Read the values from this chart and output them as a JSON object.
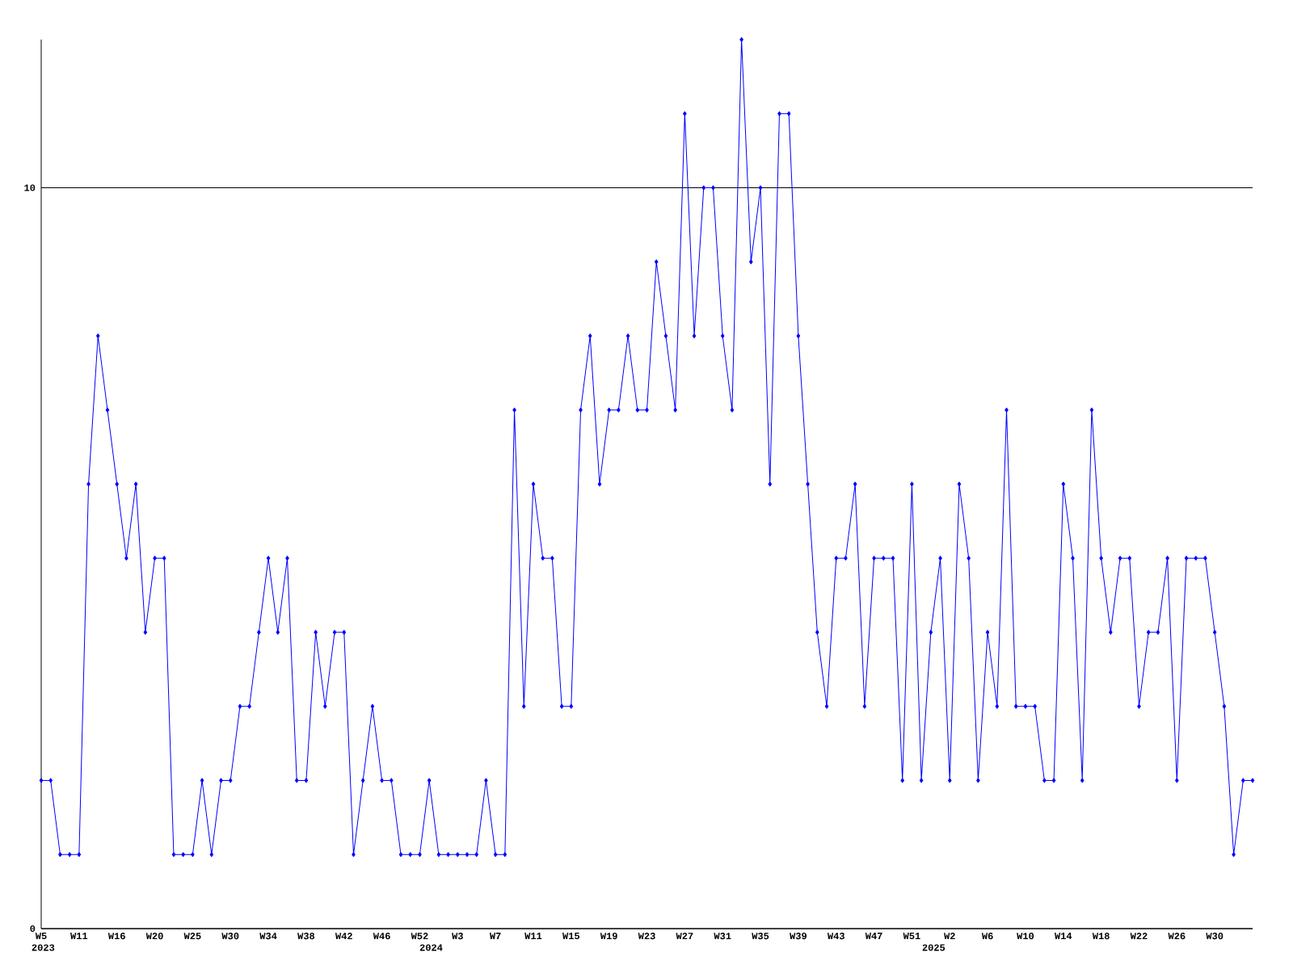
{
  "chart_data": {
    "type": "line",
    "categories": [
      "W5",
      null,
      null,
      null,
      "W11",
      null,
      null,
      null,
      "W16",
      null,
      null,
      null,
      "W20",
      null,
      null,
      null,
      "W25",
      null,
      null,
      null,
      "W30",
      null,
      null,
      null,
      "W34",
      null,
      null,
      null,
      "W38",
      null,
      null,
      null,
      "W42",
      null,
      null,
      null,
      "W46",
      null,
      null,
      null,
      "W52",
      null,
      null,
      null,
      "W3",
      null,
      null,
      null,
      "W7",
      null,
      null,
      null,
      "W11",
      null,
      null,
      null,
      "W15",
      null,
      null,
      null,
      "W19",
      null,
      null,
      null,
      "W23",
      null,
      null,
      null,
      "W27",
      null,
      null,
      null,
      "W31",
      null,
      null,
      null,
      "W35",
      null,
      null,
      null,
      "W39",
      null,
      null,
      null,
      "W43",
      null,
      null,
      null,
      "W47",
      null,
      null,
      null,
      "W51",
      null,
      null,
      null,
      "W2",
      null,
      null,
      null,
      "W6",
      null,
      null,
      null,
      "W10",
      null,
      null,
      null,
      "W14",
      null,
      null,
      null,
      "W18",
      null,
      null,
      null,
      "W22",
      null,
      null,
      null,
      "W26",
      null,
      null,
      null,
      "W30",
      null,
      null,
      null,
      null
    ],
    "values": [
      2,
      2,
      1,
      1,
      1,
      6,
      8,
      7,
      6,
      5,
      6,
      4,
      5,
      5,
      1,
      1,
      1,
      2,
      1,
      2,
      2,
      3,
      3,
      4,
      5,
      4,
      5,
      2,
      2,
      4,
      3,
      4,
      4,
      1,
      2,
      3,
      2,
      2,
      1,
      1,
      1,
      2,
      1,
      1,
      1,
      1,
      1,
      2,
      1,
      1,
      7,
      3,
      6,
      5,
      5,
      3,
      3,
      7,
      8,
      6,
      7,
      7,
      8,
      7,
      7,
      9,
      8,
      7,
      11,
      8,
      10,
      10,
      8,
      7,
      12,
      9,
      10,
      6,
      11,
      11,
      8,
      6,
      4,
      3,
      5,
      5,
      6,
      3,
      5,
      5,
      5,
      2,
      6,
      2,
      4,
      5,
      2,
      6,
      5,
      2,
      4,
      3,
      7,
      3,
      3,
      3,
      2,
      2,
      6,
      5,
      2,
      7,
      5,
      4,
      5,
      5,
      3,
      4,
      4,
      5,
      2,
      5,
      5,
      5,
      4,
      3,
      1,
      2,
      2
    ],
    "color": "#0000ff",
    "ylim": [
      0,
      12
    ],
    "yticks": [
      0,
      10
    ],
    "grid": "y",
    "marker": "diamond",
    "line_style": "solid",
    "annotations": [
      "2023",
      "2024",
      "2025"
    ]
  }
}
